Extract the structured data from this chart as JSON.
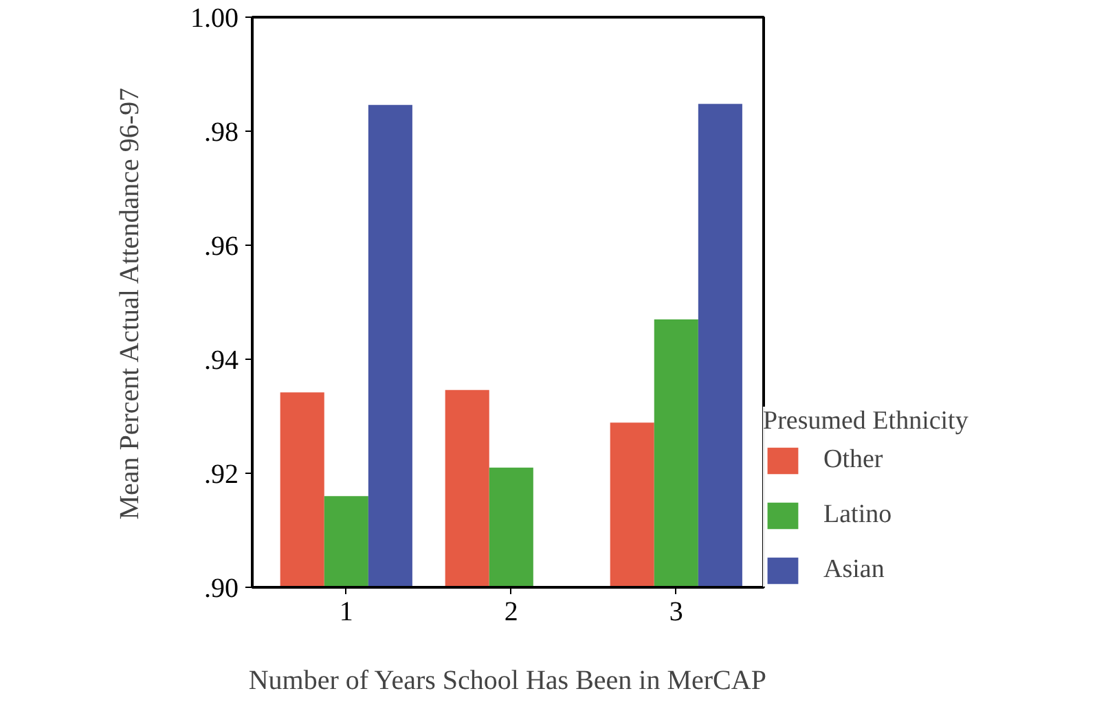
{
  "chart_data": {
    "type": "bar",
    "xlabel": "Number of Years School Has Been in MerCAP",
    "ylabel": "Mean Percent Actual Attendance 96-97",
    "legend_title": "Presumed Ethnicity",
    "categories": [
      "1",
      "2",
      "3"
    ],
    "series": [
      {
        "name": "Other",
        "color": "#e65b44",
        "values": [
          0.9342,
          0.9346,
          0.9289
        ]
      },
      {
        "name": "Latino",
        "color": "#4aaa3e",
        "values": [
          0.916,
          0.921,
          0.947
        ]
      },
      {
        "name": "Asian",
        "color": "#4756a4",
        "values": [
          0.9846,
          null,
          0.9848
        ]
      }
    ],
    "ylim": [
      0.9,
      1.0
    ],
    "yticks": [
      {
        "value": 0.9,
        "label": ".90"
      },
      {
        "value": 0.92,
        "label": ".92"
      },
      {
        "value": 0.94,
        "label": ".94"
      },
      {
        "value": 0.96,
        "label": ".96"
      },
      {
        "value": 0.98,
        "label": ".98"
      },
      {
        "value": 1.0,
        "label": "1.00"
      }
    ],
    "grid": false,
    "legend": "right"
  }
}
